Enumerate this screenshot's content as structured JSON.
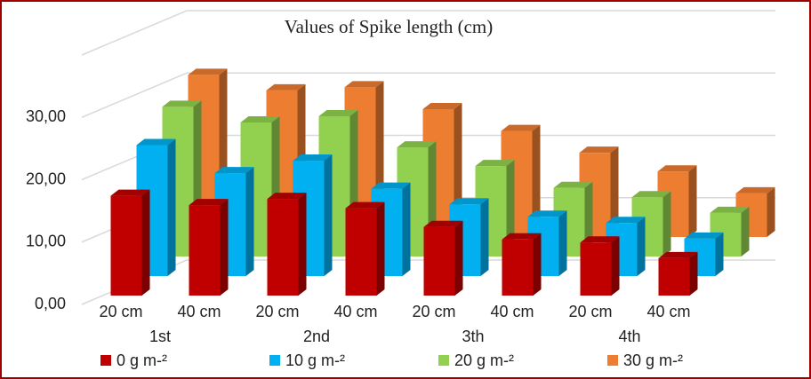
{
  "chart_data": {
    "type": "bar3d",
    "title": "Values of Spike length (cm)",
    "categories": [
      "20 cm",
      "40 cm",
      "20 cm",
      "40 cm",
      "20 cm",
      "40 cm",
      "20 cm",
      "40 cm"
    ],
    "group_labels": [
      "1st",
      "2nd",
      "3th",
      "4th"
    ],
    "series": [
      {
        "name": "0 g m-²",
        "color": "#c00000",
        "values": [
          16,
          14.5,
          15.5,
          14,
          11,
          9,
          8.5,
          6
        ]
      },
      {
        "name": "10 g m-²",
        "color": "#00b0f0",
        "values": [
          21,
          16.5,
          18.5,
          14,
          11.5,
          9.5,
          8.5,
          6
        ]
      },
      {
        "name": "20 g m-²",
        "color": "#92d050",
        "values": [
          24,
          21.5,
          22.5,
          17.5,
          14.5,
          11,
          9.5,
          7
        ]
      },
      {
        "name": "30 g m-²",
        "color": "#ed7d31",
        "values": [
          26,
          23.5,
          24,
          20.5,
          17,
          13.5,
          10.5,
          7
        ]
      }
    ],
    "ylim": [
      0,
      40
    ],
    "yticks": [
      {
        "value": 0,
        "label": "0,00"
      },
      {
        "value": 10,
        "label": "10,00"
      },
      {
        "value": 20,
        "label": "20,00"
      },
      {
        "value": 30,
        "label": "30,00"
      }
    ],
    "grid": true
  }
}
